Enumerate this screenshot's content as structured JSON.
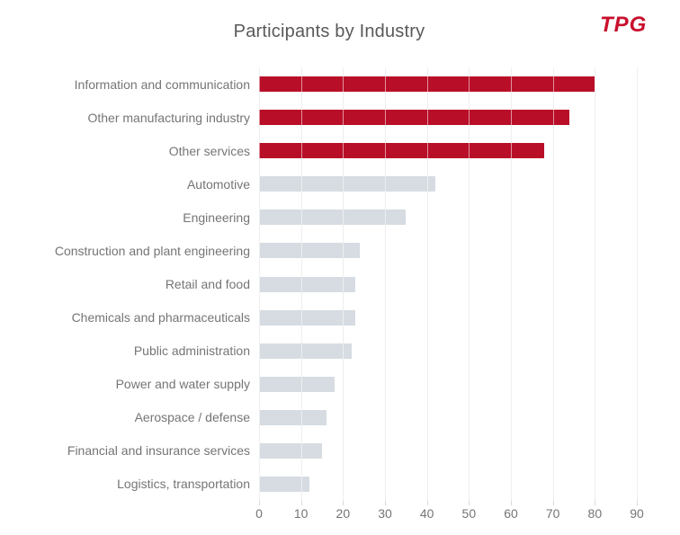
{
  "title": "Participants by Industry",
  "logo": {
    "text": "TPG"
  },
  "chart_data": {
    "type": "bar",
    "orientation": "horizontal",
    "title": "Participants by Industry",
    "categories": [
      "Information and communication",
      "Other manufacturing industry",
      "Other services",
      "Automotive",
      "Engineering",
      "Construction and plant engineering",
      "Retail and food",
      "Chemicals and pharmaceuticals",
      "Public administration",
      "Power and water supply",
      "Aerospace / defense",
      "Financial and insurance services",
      "Logistics, transportation"
    ],
    "values": [
      80,
      74,
      68,
      42,
      35,
      24,
      23,
      23,
      22,
      18,
      16,
      15,
      12
    ],
    "highlight_count": 3,
    "bar_colors": {
      "highlight": "#B90E28",
      "default": "#D6DCE1"
    },
    "xlim": [
      0,
      90
    ],
    "x_ticks": [
      0,
      10,
      20,
      30,
      40,
      50,
      60,
      70,
      80,
      90
    ],
    "grid": true,
    "legend": false,
    "xlabel": "",
    "ylabel": ""
  },
  "colors": {
    "title_text": "#595959",
    "label_text": "#757575",
    "tick_text": "#757575",
    "gridline": "#D9D9D9",
    "logo_red": "#C8102E",
    "background": "#FFFFFF"
  }
}
